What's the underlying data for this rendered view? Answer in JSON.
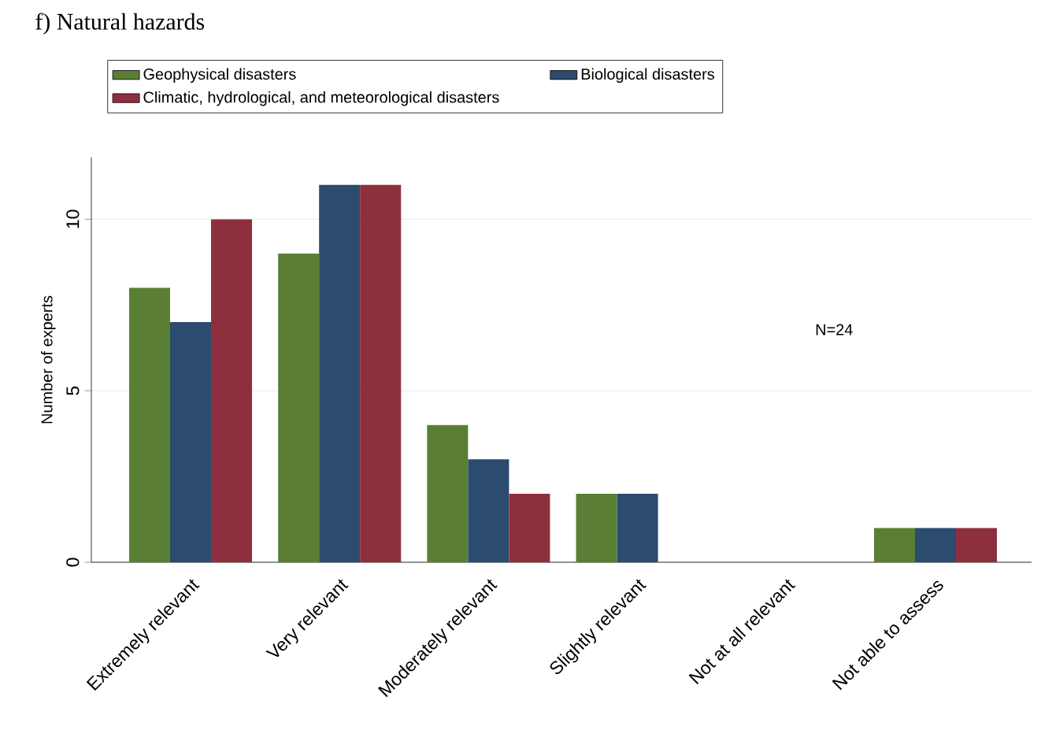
{
  "chart_data": {
    "type": "bar",
    "title": "f) Natural hazards",
    "ylabel": "Number of experts",
    "categories": [
      "Extremely relevant",
      "Very relevant",
      "Moderately relevant",
      "Slightly relevant",
      "Not at all relevant",
      "Not able to assess"
    ],
    "series": [
      {
        "name": "Geophysical disasters",
        "color": "#5a7f34",
        "values": [
          8,
          9,
          4,
          2,
          0,
          1
        ]
      },
      {
        "name": "Biological disasters",
        "color": "#2b4b6f",
        "values": [
          7,
          11,
          3,
          2,
          0,
          1
        ]
      },
      {
        "name": "Climatic, hydrological, and meteorological disasters",
        "color": "#8e2f3e",
        "values": [
          10,
          11,
          2,
          0,
          0,
          1
        ]
      }
    ],
    "ylim": [
      0,
      11.8
    ],
    "yticks": [
      0,
      5,
      10
    ],
    "grid": "y",
    "legend": "top",
    "annotations": [
      "N=24"
    ]
  }
}
